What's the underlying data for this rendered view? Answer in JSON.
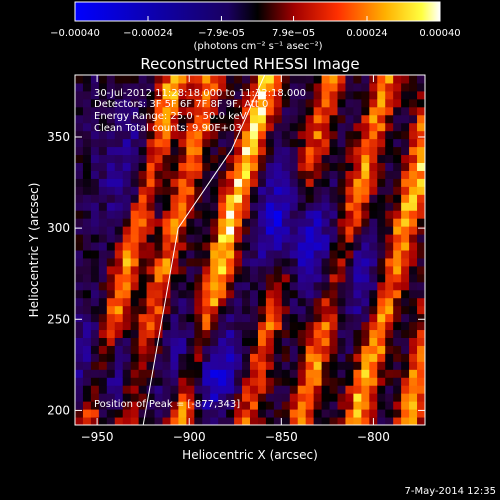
{
  "chart_data": {
    "type": "heatmap",
    "title": "Reconstructed RHESSI Image",
    "xlabel": "Heliocentric X (arcsec)",
    "ylabel": "Heliocentric Y (arcsec)",
    "xlim": [
      -962,
      -772
    ],
    "ylim": [
      192,
      384
    ],
    "xticks": [
      -950,
      -900,
      -850,
      -800
    ],
    "yticks": [
      200,
      250,
      300,
      350
    ],
    "colorbar": {
      "label": "(photons cm⁻² s⁻¹ asec⁻²)",
      "range": [
        -0.0004,
        0.0004
      ],
      "ticks": [
        "-0.00040",
        "-0.00024",
        "-7.9e-05",
        "7.9e-05",
        "0.00024",
        "0.00040"
      ],
      "colormap": [
        "#0000ff",
        "#000000",
        "#c00000",
        "#ff8000",
        "#ffff00",
        "#ffffff"
      ]
    },
    "annotations": {
      "time_range": "30-Jul-2012 11:28:18.000 to 11:32:18.000",
      "detectors": "Detectors: 3F 5F 6F 7F 8F 9F, Att 0",
      "energy": "Energy Range: 25.0 - 50.0 keV",
      "method": "Clean     Total counts: 9.90E+03",
      "peak": "Position of Peak = [-877,343]"
    },
    "peak": [
      -877,
      343
    ],
    "limb_line": [
      [
        -925,
        192
      ],
      [
        -906,
        300
      ],
      [
        -877,
        343
      ],
      [
        -859,
        384
      ]
    ],
    "stripes": [
      {
        "x0": -955,
        "slope": 0.55,
        "amp": 0.00034
      },
      {
        "x0": -935,
        "slope": 0.55,
        "amp": 0.00028
      },
      {
        "x0": -905,
        "slope": 0.55,
        "amp": 0.0004
      },
      {
        "x0": -870,
        "slope": 0.55,
        "amp": 0.00026
      },
      {
        "x0": -840,
        "slope": 0.55,
        "amp": 0.0003
      },
      {
        "x0": -810,
        "slope": 0.55,
        "amp": 0.00036
      },
      {
        "x0": -782,
        "slope": 0.55,
        "amp": 0.00032
      }
    ],
    "blue_regions": [
      {
        "x": -945,
        "y": 220,
        "amp": -0.00028
      },
      {
        "x": -892,
        "y": 225,
        "amp": -0.00032
      },
      {
        "x": -845,
        "y": 300,
        "amp": -0.00036
      },
      {
        "x": -930,
        "y": 330,
        "amp": -0.00018
      },
      {
        "x": -810,
        "y": 275,
        "amp": -0.0002
      }
    ]
  },
  "footer": {
    "date": "7-May-2014 12:35"
  }
}
